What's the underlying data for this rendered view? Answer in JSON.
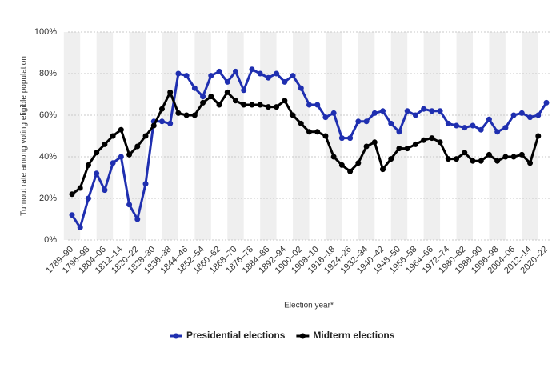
{
  "chart_data": {
    "type": "line",
    "y_label": "Turnout rate among voting eligible population",
    "x_label": "Election year*",
    "categories": [
      "1789–90",
      null,
      "1796–98",
      null,
      "1804–06",
      null,
      "1812–14",
      null,
      "1820–22",
      null,
      "1828–30",
      null,
      "1836–38",
      null,
      "1844–46",
      null,
      "1852–54",
      null,
      "1860–62",
      null,
      "1868–70",
      null,
      "1876–78",
      null,
      "1884–86",
      null,
      "1892–94",
      null,
      "1900–02",
      null,
      "1908–10",
      null,
      "1916–18",
      null,
      "1924–26",
      null,
      "1932–34",
      null,
      "1940–42",
      null,
      "1948–50",
      null,
      "1956–58",
      null,
      "1964–66",
      null,
      "1972–74",
      null,
      "1980–82",
      null,
      "1988–90",
      null,
      "1996–98",
      null,
      "2004–06",
      null,
      "2012–14",
      null,
      "2020–22"
    ],
    "series": [
      {
        "name": "Presidential elections",
        "color": "#1f2fb0",
        "values": [
          12,
          6,
          20,
          32,
          24,
          37,
          40,
          17,
          10,
          27,
          57,
          57,
          56,
          80,
          79,
          73,
          69,
          79,
          81,
          76,
          81,
          72,
          82,
          80,
          78,
          80,
          76,
          79,
          73,
          65,
          65,
          59,
          61,
          49,
          49,
          57,
          57,
          61,
          62,
          56,
          52,
          62,
          60,
          63,
          62,
          62,
          56,
          55,
          54,
          55,
          53,
          58,
          52,
          54,
          60,
          61,
          59,
          60,
          66
        ]
      },
      {
        "name": "Midterm elections",
        "color": "#000000",
        "values": [
          22,
          25,
          36,
          42,
          46,
          50,
          53,
          41,
          45,
          50,
          55,
          63,
          71,
          61,
          60,
          60,
          66,
          69,
          65,
          71,
          67,
          65,
          65,
          65,
          64,
          64,
          67,
          60,
          56,
          52,
          52,
          50,
          40,
          36,
          33,
          37,
          45,
          47,
          34,
          39,
          44,
          44,
          46,
          48,
          49,
          47,
          39,
          39,
          42,
          38,
          38,
          41,
          38,
          40,
          40,
          41,
          37,
          50,
          null
        ]
      }
    ],
    "ylim": [
      0,
      100
    ],
    "yticks": [
      {
        "value": 0,
        "label": "0%"
      },
      {
        "value": 20,
        "label": "20%"
      },
      {
        "value": 40,
        "label": "40%"
      },
      {
        "value": 60,
        "label": "60%"
      },
      {
        "value": 80,
        "label": "80%"
      },
      {
        "value": 100,
        "label": "100%"
      }
    ],
    "grid": true
  }
}
